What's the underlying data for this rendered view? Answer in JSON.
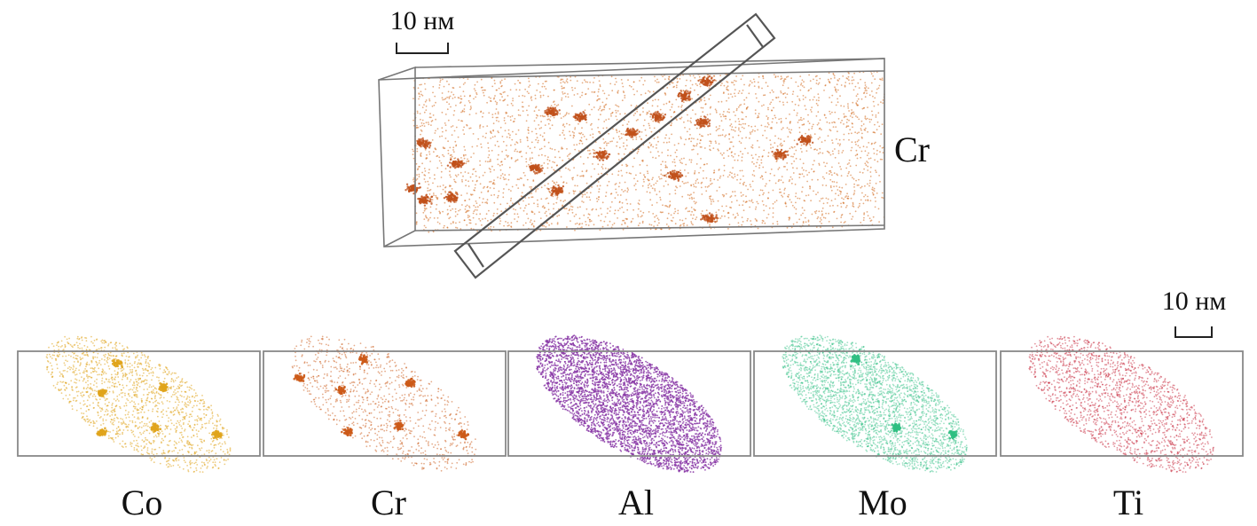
{
  "top_panel": {
    "element_label": "Cr",
    "scale_bar": {
      "label": "10 нм"
    },
    "color": "#d2691e"
  },
  "bottom_panel": {
    "scale_bar": {
      "label": "10 нм"
    },
    "maps": [
      {
        "element": "Co",
        "color": "#e0a41c"
      },
      {
        "element": "Cr",
        "color": "#cc5a18"
      },
      {
        "element": "Al",
        "color": "#8a3aa8"
      },
      {
        "element": "Mo",
        "color": "#2fbf82"
      },
      {
        "element": "Ti",
        "color": "#c8283c"
      }
    ]
  }
}
